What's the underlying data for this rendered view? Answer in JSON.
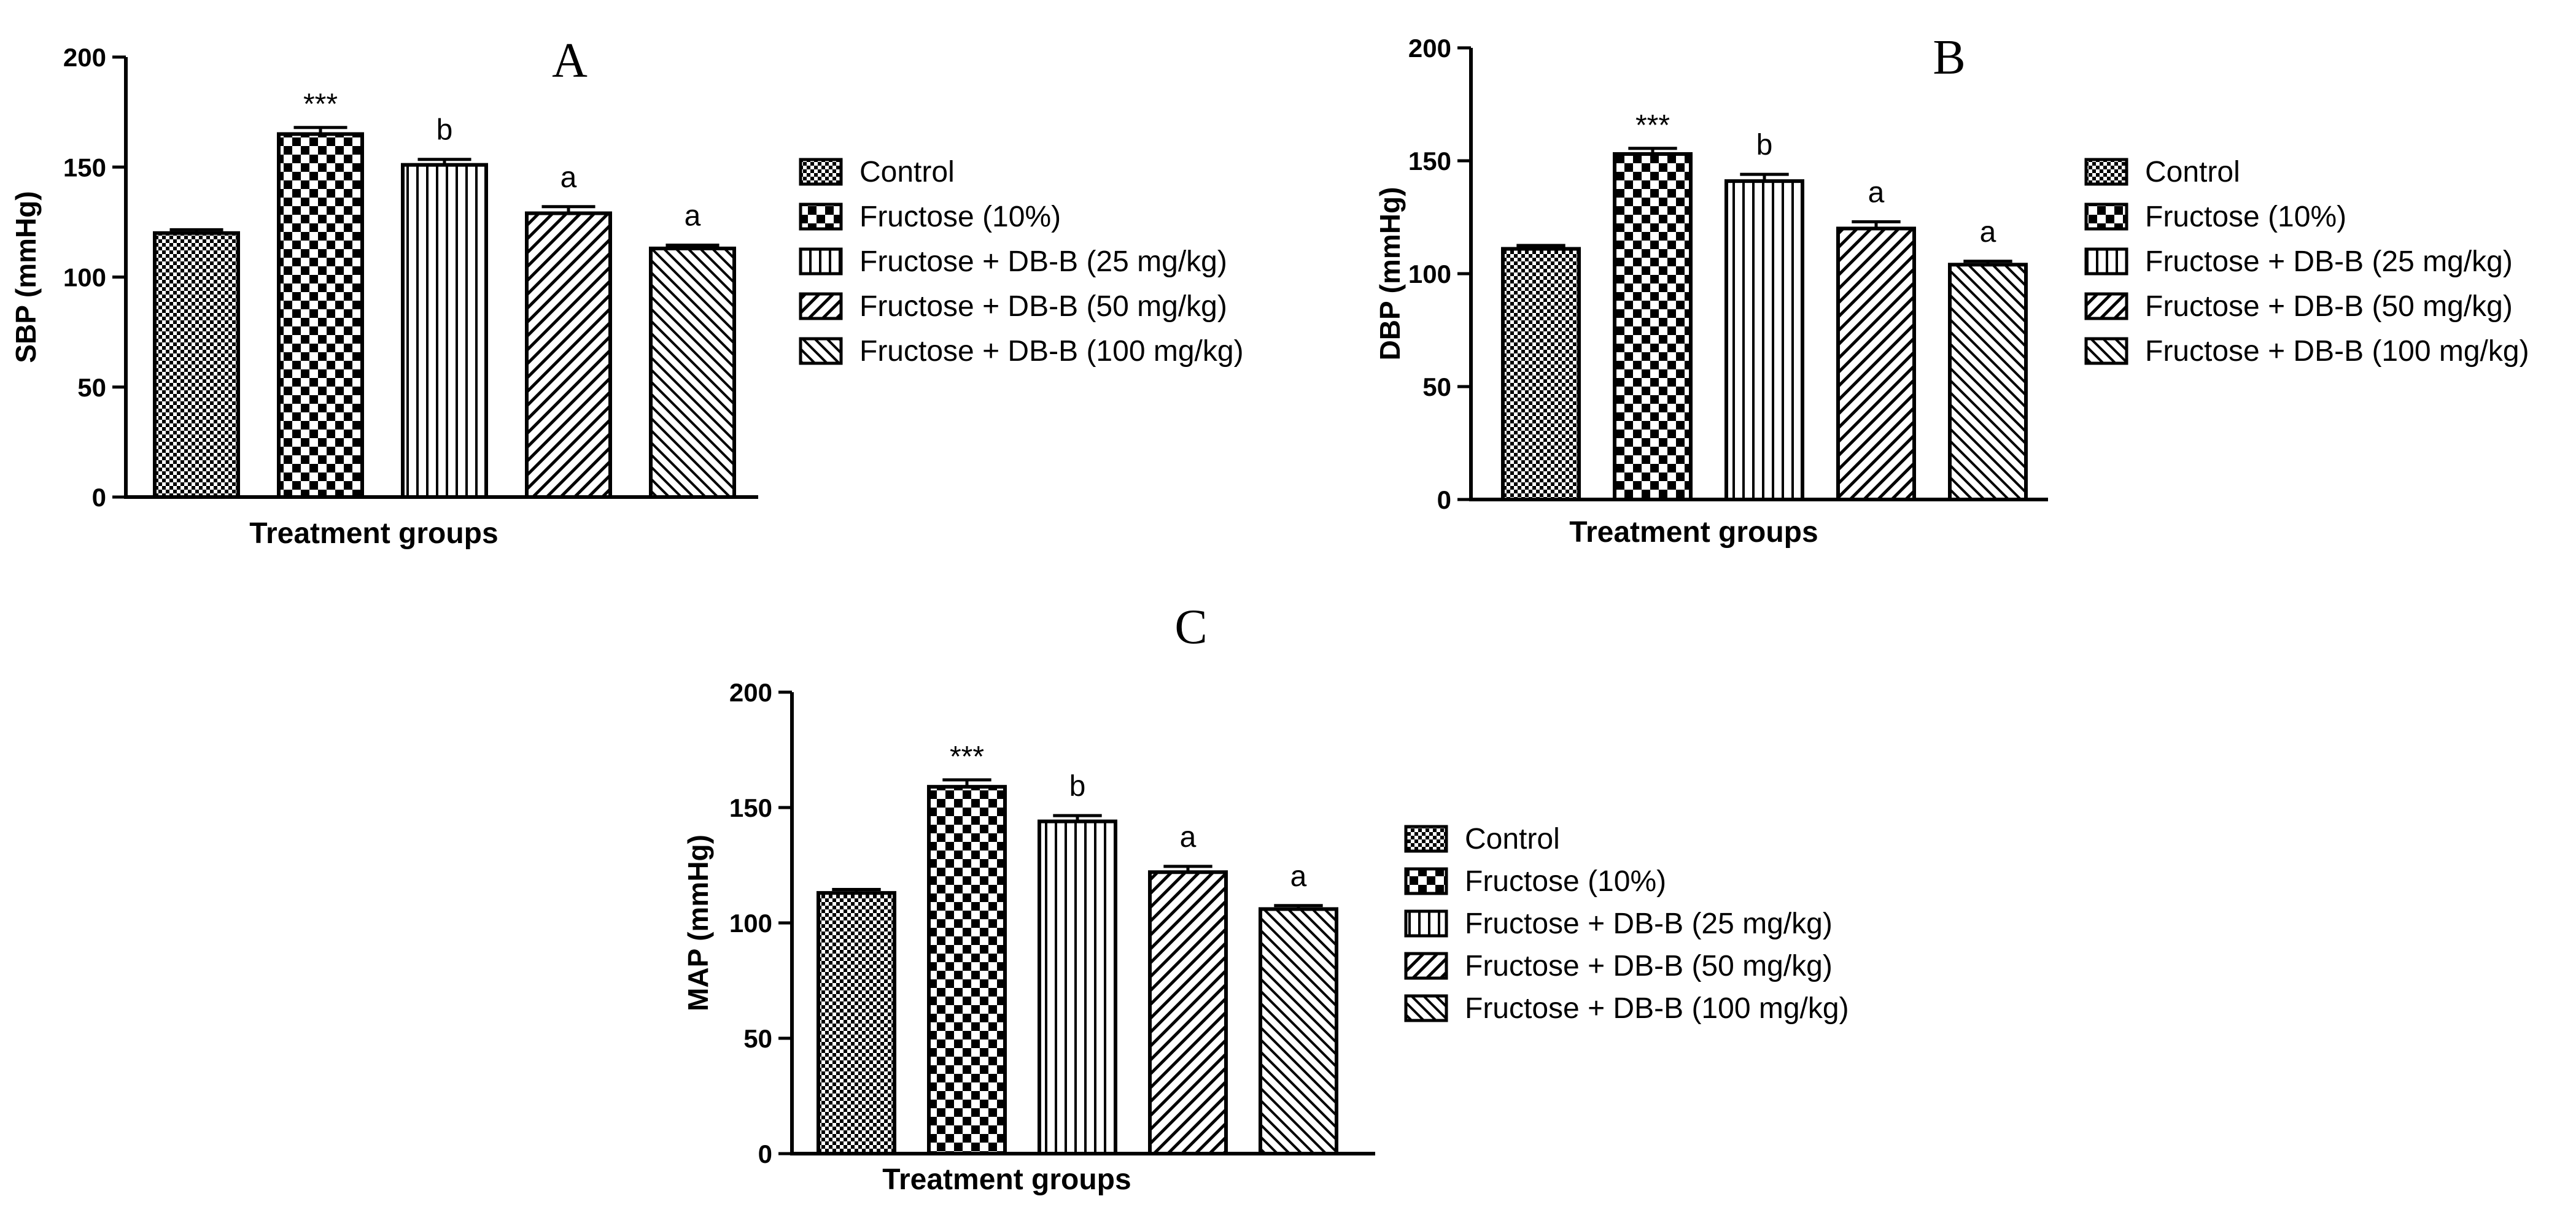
{
  "legend_items": [
    "Control",
    "Fructose (10%)",
    "Fructose + DB-B (25 mg/kg)",
    "Fructose + DB-B (50 mg/kg)",
    "Fructose + DB-B (100 mg/kg)"
  ],
  "chart_data": [
    {
      "type": "bar",
      "panel_label": "A",
      "title": "",
      "xlabel": "Treatment groups",
      "ylabel": "SBP (mmHg)",
      "ylim": [
        0,
        200
      ],
      "yticks": [
        "0",
        "50",
        "100",
        "150",
        "200"
      ],
      "categories": [
        "Control",
        "Fructose (10%)",
        "Fructose + DB-B (25 mg/kg)",
        "Fructose + DB-B (50 mg/kg)",
        "Fructose + DB-B (100 mg/kg)"
      ],
      "values": [
        120,
        165,
        151,
        129,
        113
      ],
      "errors": [
        1.5,
        3,
        2.5,
        3,
        1.5
      ],
      "annotations": [
        "",
        "***",
        "b",
        "a",
        "a"
      ],
      "legend_position": "right"
    },
    {
      "type": "bar",
      "panel_label": "B",
      "title": "",
      "xlabel": "Treatment groups",
      "ylabel": "DBP (mmHg)",
      "ylim": [
        0,
        200
      ],
      "yticks": [
        "0",
        "50",
        "100",
        "150",
        "200"
      ],
      "categories": [
        "Control",
        "Fructose (10%)",
        "Fructose + DB-B (25 mg/kg)",
        "Fructose + DB-B (50 mg/kg)",
        "Fructose + DB-B (100 mg/kg)"
      ],
      "values": [
        111,
        153,
        141,
        120,
        104
      ],
      "errors": [
        1.5,
        2.5,
        3,
        3,
        1.5
      ],
      "annotations": [
        "",
        "***",
        "b",
        "a",
        "a"
      ],
      "legend_position": "right"
    },
    {
      "type": "bar",
      "panel_label": "C",
      "title": "",
      "xlabel": "Treatment groups",
      "ylabel": "MAP (mmHg)",
      "ylim": [
        0,
        200
      ],
      "yticks": [
        "0",
        "50",
        "100",
        "150",
        "200"
      ],
      "categories": [
        "Control",
        "Fructose (10%)",
        "Fructose + DB-B (25 mg/kg)",
        "Fructose + DB-B (50 mg/kg)",
        "Fructose + DB-B (100 mg/kg)"
      ],
      "values": [
        113,
        159,
        144,
        122,
        106
      ],
      "errors": [
        1.5,
        3,
        2.5,
        2.5,
        1.5
      ],
      "annotations": [
        "",
        "***",
        "b",
        "a",
        "a"
      ],
      "legend_position": "right"
    }
  ]
}
